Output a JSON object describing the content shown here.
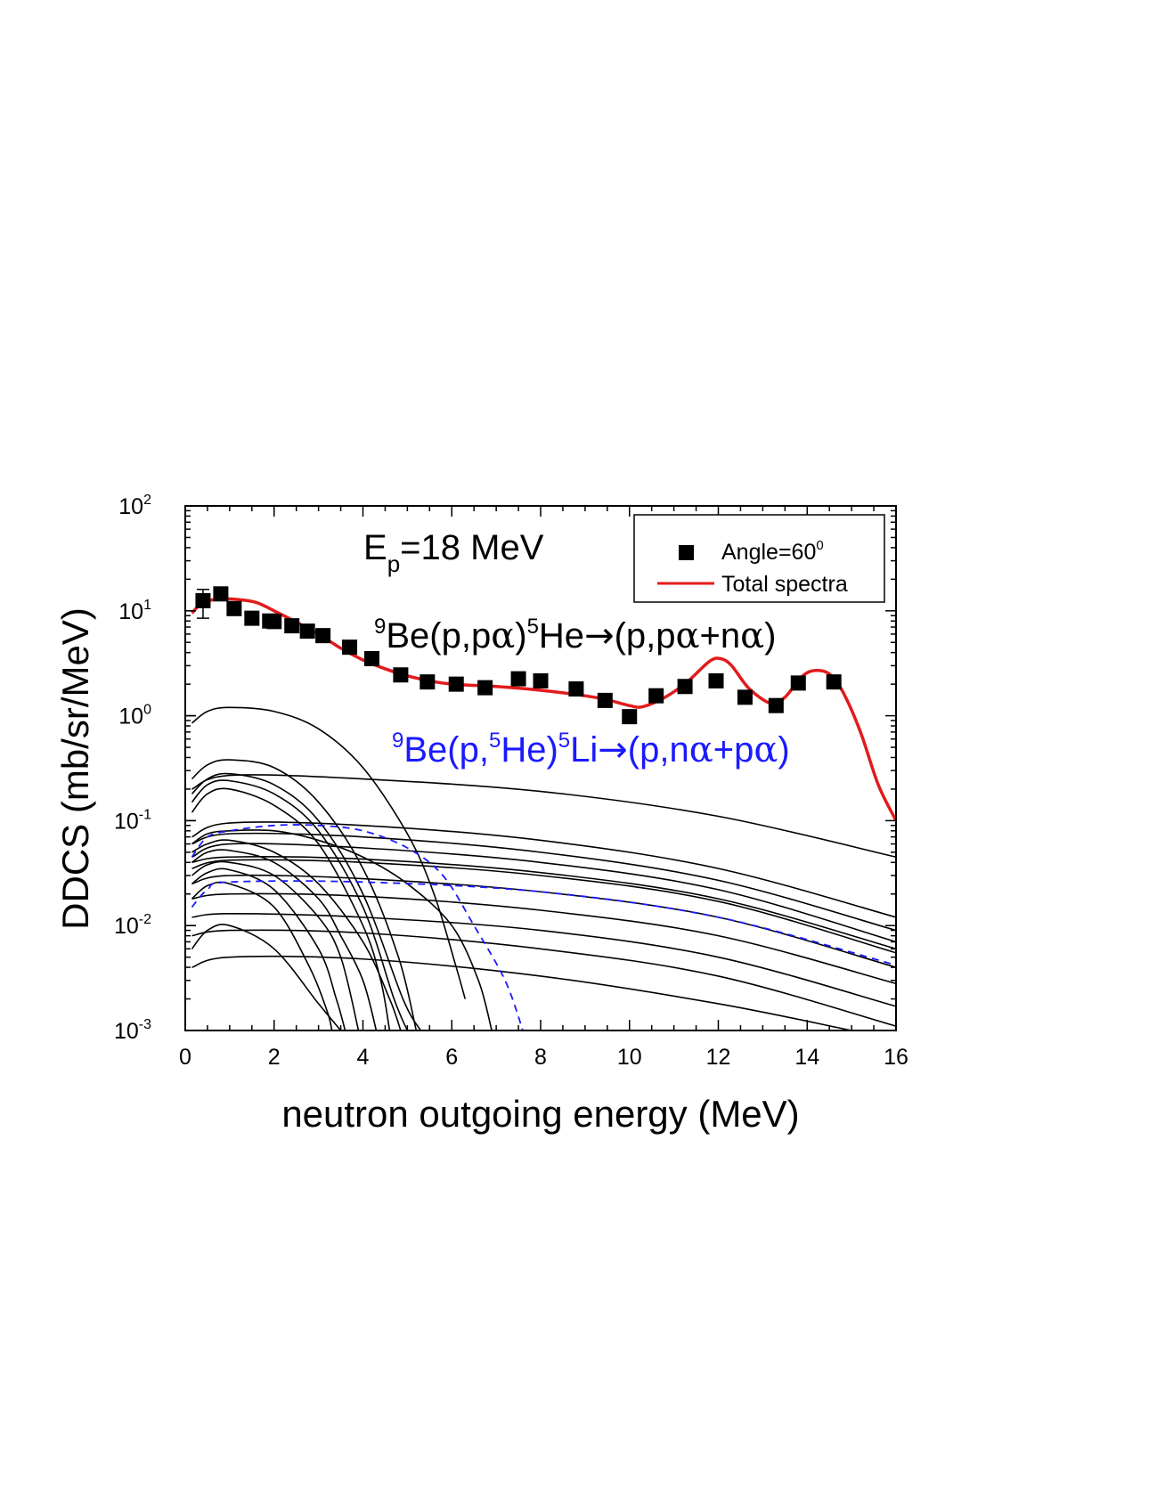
{
  "chart_data": {
    "type": "line",
    "x_axis": {
      "label": "neutron outgoing energy (MeV)",
      "range": [
        0,
        16
      ],
      "ticks": [
        0,
        2,
        4,
        6,
        8,
        10,
        12,
        14,
        16
      ]
    },
    "y_axis": {
      "label": "DDCS (mb/sr/MeV)",
      "scale": "log",
      "range": [
        0.001,
        100
      ],
      "ticks": [
        {
          "value": 0.001,
          "base": "10",
          "exp": "-3"
        },
        {
          "value": 0.01,
          "base": "10",
          "exp": "-2"
        },
        {
          "value": 0.1,
          "base": "10",
          "exp": "-1"
        },
        {
          "value": 1,
          "base": "10",
          "exp": "0"
        },
        {
          "value": 10,
          "base": "10",
          "exp": "1"
        },
        {
          "value": 100,
          "base": "10",
          "exp": "2"
        }
      ]
    },
    "grid": false,
    "legend": {
      "position": "top-right",
      "entries": [
        {
          "label": "Angle=60",
          "sup": "0",
          "marker": "square",
          "color": "#000000"
        },
        {
          "label": "Total spectra",
          "marker": "line",
          "color": "#e31a1c"
        }
      ]
    },
    "annotations": {
      "energy": {
        "main": "E",
        "sub": "p",
        "rest": "=18 MeV"
      },
      "reaction_black": {
        "sup1": "9",
        "t1": "Be(p,p",
        "g1": "α",
        "t2": ")",
        "sup2": "5",
        "t3": "He",
        "arrow": "→",
        "t4": "(p,p",
        "g2": "α",
        "t5": "+n",
        "g3": "α",
        "t6": ")"
      },
      "reaction_blue": {
        "sup1": "9",
        "t1": "Be(p,",
        "sup2": "5",
        "t2": "He)",
        "sup3": "5",
        "t3": "Li",
        "arrow": "→",
        "t4": "(p,n",
        "g1": "α",
        "t5": "+p",
        "g2": "α",
        "t6": ")"
      }
    },
    "colors": {
      "data": "#000000",
      "total": "#e31a1c",
      "blue": "#1a1aff",
      "components": "#000000"
    },
    "experimental": {
      "name": "Angle=60",
      "points": [
        [
          0.4,
          12.5
        ],
        [
          0.8,
          14.5
        ],
        [
          1.1,
          10.5
        ],
        [
          1.5,
          8.5
        ],
        [
          1.9,
          8.0
        ],
        [
          2.0,
          7.9
        ],
        [
          2.4,
          7.2
        ],
        [
          2.75,
          6.4
        ],
        [
          3.1,
          5.8
        ],
        [
          3.7,
          4.5
        ],
        [
          4.2,
          3.5
        ],
        [
          4.85,
          2.45
        ],
        [
          5.45,
          2.1
        ],
        [
          6.1,
          2.0
        ],
        [
          6.75,
          1.85
        ],
        [
          7.5,
          2.25
        ],
        [
          8.0,
          2.15
        ],
        [
          8.8,
          1.8
        ],
        [
          9.45,
          1.4
        ],
        [
          10.0,
          0.98
        ],
        [
          10.6,
          1.55
        ],
        [
          11.25,
          1.9
        ],
        [
          11.95,
          2.15
        ],
        [
          12.6,
          1.5
        ],
        [
          13.3,
          1.25
        ],
        [
          13.8,
          2.05
        ],
        [
          14.6,
          2.1
        ]
      ],
      "error_bar": {
        "x": 0.4,
        "low": 8.5,
        "high": 16.0
      }
    },
    "total_spectra": {
      "name": "Total spectra",
      "points": [
        [
          0.15,
          9.5
        ],
        [
          0.4,
          12.0
        ],
        [
          0.8,
          13.0
        ],
        [
          1.2,
          12.8
        ],
        [
          1.6,
          12.0
        ],
        [
          2.0,
          10.0
        ],
        [
          2.5,
          7.8
        ],
        [
          3.0,
          6.0
        ],
        [
          3.5,
          4.4
        ],
        [
          4.0,
          3.4
        ],
        [
          4.5,
          2.8
        ],
        [
          5.0,
          2.4
        ],
        [
          5.5,
          2.15
        ],
        [
          6.0,
          2.0
        ],
        [
          7.0,
          1.9
        ],
        [
          8.0,
          1.75
        ],
        [
          9.0,
          1.55
        ],
        [
          9.5,
          1.42
        ],
        [
          10.0,
          1.25
        ],
        [
          10.3,
          1.22
        ],
        [
          10.8,
          1.5
        ],
        [
          11.3,
          2.1
        ],
        [
          11.8,
          3.3
        ],
        [
          12.05,
          3.5
        ],
        [
          12.3,
          3.0
        ],
        [
          12.7,
          1.8
        ],
        [
          13.2,
          1.3
        ],
        [
          13.5,
          1.5
        ],
        [
          13.9,
          2.4
        ],
        [
          14.2,
          2.7
        ],
        [
          14.5,
          2.5
        ],
        [
          14.8,
          1.7
        ],
        [
          15.2,
          0.7
        ],
        [
          15.6,
          0.22
        ],
        [
          16.0,
          0.1
        ]
      ]
    },
    "components_black": [
      {
        "points": [
          [
            0.15,
            0.85
          ],
          [
            0.5,
            1.1
          ],
          [
            1.0,
            1.2
          ],
          [
            2.0,
            1.1
          ],
          [
            3.0,
            0.75
          ],
          [
            4.0,
            0.32
          ],
          [
            5.0,
            0.075
          ],
          [
            5.6,
            0.02
          ],
          [
            6.1,
            0.004
          ],
          [
            6.3,
            0.002
          ]
        ]
      },
      {
        "points": [
          [
            0.15,
            0.25
          ],
          [
            0.5,
            0.34
          ],
          [
            1.0,
            0.38
          ],
          [
            2.0,
            0.32
          ],
          [
            3.0,
            0.15
          ],
          [
            4.0,
            0.035
          ],
          [
            4.8,
            0.005
          ],
          [
            5.2,
            0.001
          ]
        ]
      },
      {
        "points": [
          [
            0.15,
            0.18
          ],
          [
            0.5,
            0.25
          ],
          [
            1.0,
            0.28
          ],
          [
            2.0,
            0.22
          ],
          [
            3.0,
            0.1
          ],
          [
            4.0,
            0.02
          ],
          [
            4.9,
            0.002
          ],
          [
            5.3,
            0.001
          ]
        ]
      },
      {
        "points": [
          [
            0.15,
            0.15
          ],
          [
            0.5,
            0.22
          ],
          [
            1.0,
            0.24
          ],
          [
            2.0,
            0.18
          ],
          [
            3.0,
            0.08
          ],
          [
            4.0,
            0.015
          ],
          [
            4.7,
            0.002
          ],
          [
            5.0,
            0.001
          ]
        ]
      },
      {
        "points": [
          [
            0.15,
            0.12
          ],
          [
            0.5,
            0.18
          ],
          [
            1.0,
            0.2
          ],
          [
            2.0,
            0.14
          ],
          [
            3.0,
            0.06
          ],
          [
            4.0,
            0.01
          ],
          [
            4.4,
            0.003
          ],
          [
            4.6,
            0.001
          ]
        ]
      },
      {
        "points": [
          [
            0.15,
            0.06
          ],
          [
            0.5,
            0.075
          ],
          [
            1.0,
            0.08
          ],
          [
            2.0,
            0.08
          ],
          [
            3.0,
            0.065
          ],
          [
            4.0,
            0.045
          ],
          [
            5.0,
            0.025
          ],
          [
            6.0,
            0.01
          ],
          [
            6.6,
            0.003
          ],
          [
            6.9,
            0.001
          ]
        ]
      },
      {
        "points": [
          [
            0.15,
            0.05
          ],
          [
            0.5,
            0.06
          ],
          [
            1.0,
            0.065
          ],
          [
            2.0,
            0.05
          ],
          [
            3.0,
            0.025
          ],
          [
            4.0,
            0.007
          ],
          [
            4.6,
            0.002
          ],
          [
            4.85,
            0.001
          ]
        ]
      },
      {
        "points": [
          [
            0.15,
            0.04
          ],
          [
            0.5,
            0.05
          ],
          [
            1.0,
            0.052
          ],
          [
            2.0,
            0.04
          ],
          [
            3.0,
            0.018
          ],
          [
            3.5,
            0.008
          ],
          [
            4.0,
            0.003
          ],
          [
            4.3,
            0.001
          ]
        ]
      },
      {
        "points": [
          [
            0.15,
            0.03
          ],
          [
            0.5,
            0.038
          ],
          [
            1.0,
            0.04
          ],
          [
            2.0,
            0.03
          ],
          [
            3.0,
            0.012
          ],
          [
            3.5,
            0.005
          ],
          [
            3.9,
            0.001
          ]
        ]
      },
      {
        "points": [
          [
            0.15,
            0.025
          ],
          [
            0.5,
            0.032
          ],
          [
            1.0,
            0.034
          ],
          [
            2.0,
            0.022
          ],
          [
            3.0,
            0.006
          ],
          [
            3.4,
            0.002
          ],
          [
            3.6,
            0.001
          ]
        ]
      },
      {
        "points": [
          [
            0.15,
            0.018
          ],
          [
            0.5,
            0.024
          ],
          [
            1.0,
            0.025
          ],
          [
            2.0,
            0.015
          ],
          [
            2.8,
            0.004
          ],
          [
            3.2,
            0.0015
          ],
          [
            3.3,
            0.001
          ]
        ]
      },
      {
        "points": [
          [
            0.15,
            0.006
          ],
          [
            0.5,
            0.009
          ],
          [
            1.0,
            0.01
          ],
          [
            2.0,
            0.006
          ],
          [
            3.0,
            0.0018
          ],
          [
            3.5,
            0.001
          ]
        ]
      },
      {
        "points": [
          [
            0.15,
            0.2
          ],
          [
            1.0,
            0.27
          ],
          [
            4.0,
            0.25
          ],
          [
            8.0,
            0.19
          ],
          [
            12.0,
            0.11
          ],
          [
            16.0,
            0.045
          ]
        ]
      },
      {
        "points": [
          [
            0.15,
            0.07
          ],
          [
            1.0,
            0.095
          ],
          [
            4.0,
            0.09
          ],
          [
            8.0,
            0.065
          ],
          [
            12.0,
            0.035
          ],
          [
            16.0,
            0.012
          ]
        ]
      },
      {
        "points": [
          [
            0.15,
            0.06
          ],
          [
            1.0,
            0.075
          ],
          [
            4.0,
            0.07
          ],
          [
            8.0,
            0.05
          ],
          [
            12.0,
            0.027
          ],
          [
            16.0,
            0.009
          ]
        ]
      },
      {
        "points": [
          [
            0.15,
            0.045
          ],
          [
            1.0,
            0.06
          ],
          [
            4.0,
            0.055
          ],
          [
            8.0,
            0.04
          ],
          [
            12.0,
            0.022
          ],
          [
            16.0,
            0.007
          ]
        ]
      },
      {
        "points": [
          [
            0.15,
            0.04
          ],
          [
            1.0,
            0.045
          ],
          [
            4.0,
            0.043
          ],
          [
            8.0,
            0.032
          ],
          [
            12.0,
            0.018
          ],
          [
            16.0,
            0.006
          ]
        ]
      },
      {
        "points": [
          [
            0.15,
            0.035
          ],
          [
            1.0,
            0.042
          ],
          [
            4.0,
            0.04
          ],
          [
            8.0,
            0.03
          ],
          [
            12.0,
            0.017
          ],
          [
            16.0,
            0.0055
          ]
        ]
      },
      {
        "points": [
          [
            0.15,
            0.025
          ],
          [
            1.0,
            0.03
          ],
          [
            4.0,
            0.028
          ],
          [
            8.0,
            0.021
          ],
          [
            12.0,
            0.012
          ],
          [
            16.0,
            0.004
          ]
        ]
      },
      {
        "points": [
          [
            0.15,
            0.018
          ],
          [
            1.0,
            0.02
          ],
          [
            4.0,
            0.019
          ],
          [
            8.0,
            0.014
          ],
          [
            12.0,
            0.008
          ],
          [
            16.0,
            0.0028
          ]
        ]
      },
      {
        "points": [
          [
            0.15,
            0.012
          ],
          [
            1.0,
            0.013
          ],
          [
            4.0,
            0.012
          ],
          [
            8.0,
            0.009
          ],
          [
            12.0,
            0.005
          ],
          [
            16.0,
            0.0017
          ]
        ]
      },
      {
        "points": [
          [
            0.15,
            0.008
          ],
          [
            1.0,
            0.009
          ],
          [
            4.0,
            0.0085
          ],
          [
            8.0,
            0.006
          ],
          [
            12.0,
            0.0033
          ],
          [
            16.0,
            0.0011
          ]
        ]
      },
      {
        "points": [
          [
            0.15,
            0.004
          ],
          [
            1.0,
            0.005
          ],
          [
            4.0,
            0.0048
          ],
          [
            8.0,
            0.0033
          ],
          [
            12.0,
            0.0018
          ],
          [
            15.0,
            0.001
          ]
        ]
      }
    ],
    "components_blue_dashed": [
      {
        "points": [
          [
            0.15,
            0.045
          ],
          [
            0.5,
            0.07
          ],
          [
            1.0,
            0.08
          ],
          [
            2.0,
            0.09
          ],
          [
            3.0,
            0.09
          ],
          [
            4.0,
            0.08
          ],
          [
            5.0,
            0.055
          ],
          [
            5.8,
            0.03
          ],
          [
            6.5,
            0.01
          ],
          [
            7.2,
            0.003
          ],
          [
            7.6,
            0.001
          ]
        ]
      },
      {
        "points": [
          [
            0.15,
            0.015
          ],
          [
            0.5,
            0.022
          ],
          [
            1.0,
            0.026
          ],
          [
            4.0,
            0.026
          ],
          [
            8.0,
            0.021
          ],
          [
            12.0,
            0.012
          ],
          [
            16.0,
            0.0042
          ]
        ]
      }
    ]
  }
}
